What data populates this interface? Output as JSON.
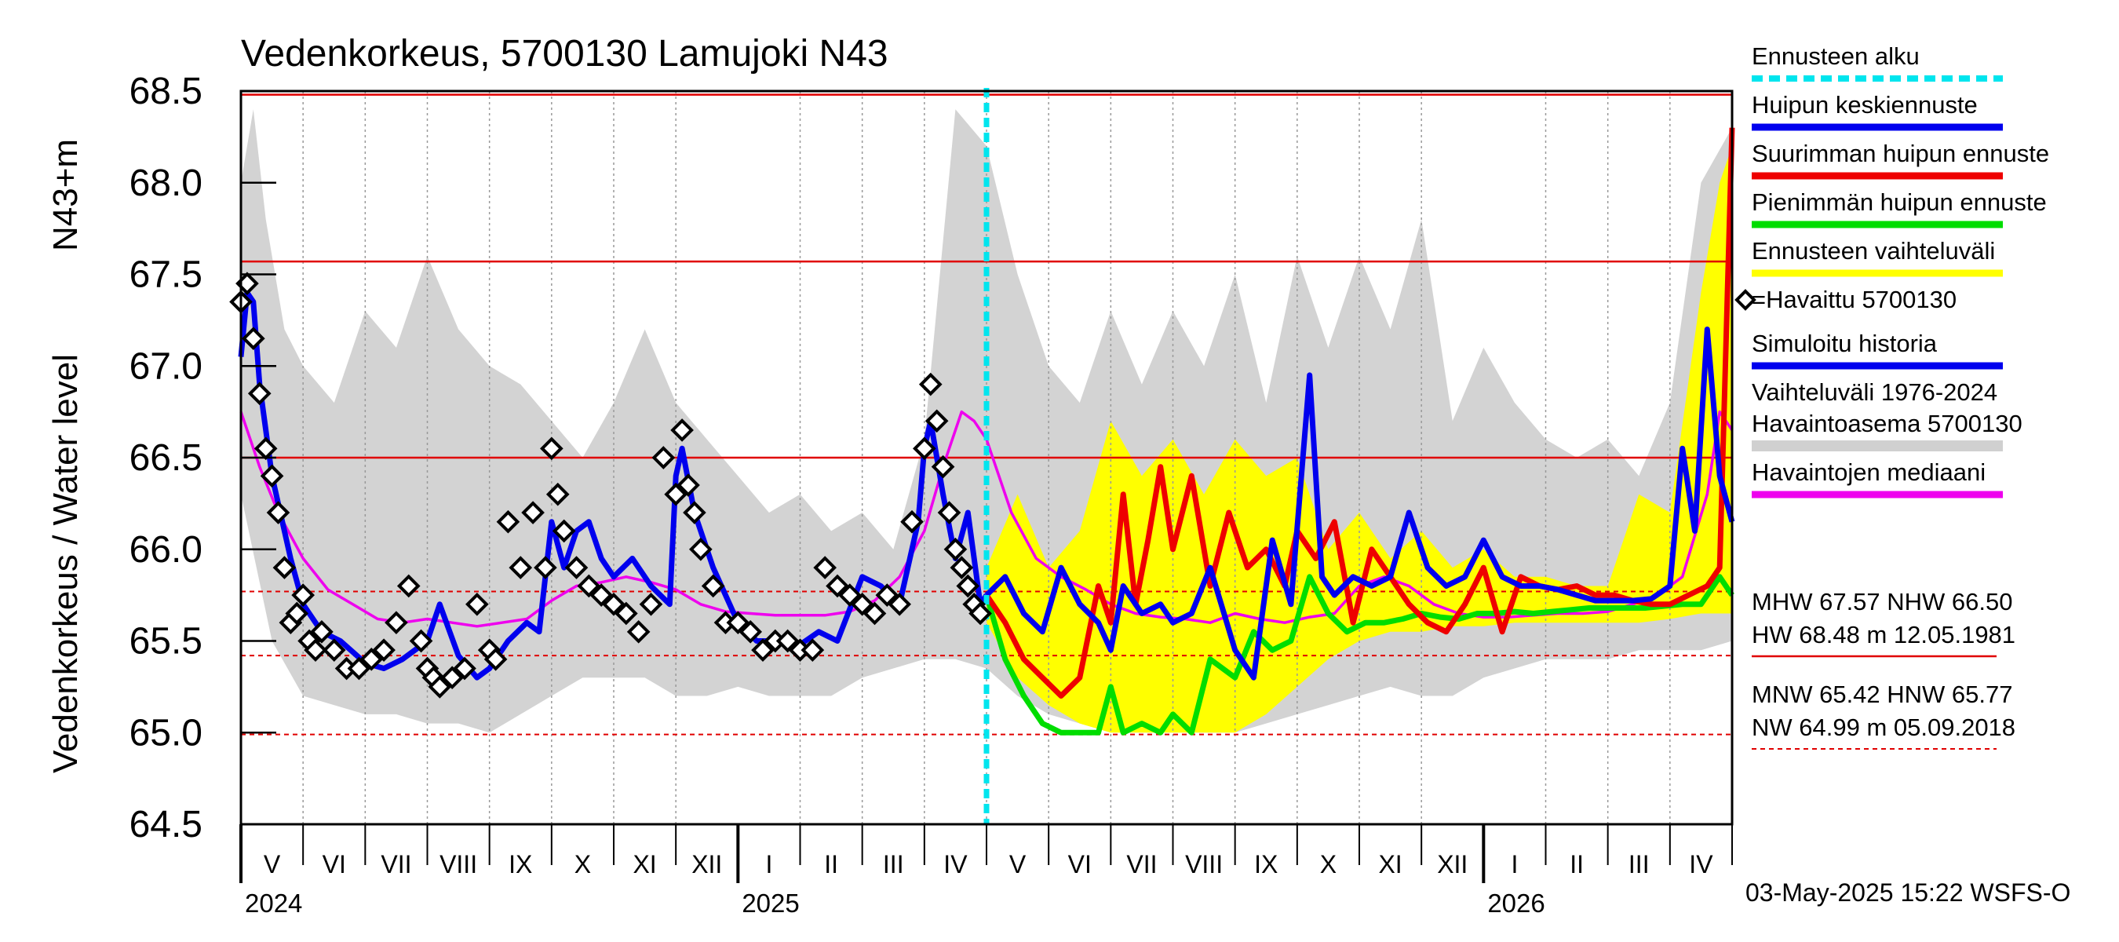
{
  "chart_data": {
    "type": "line",
    "title": "Vedenkorkeus, 5700130 Lamujoki N43",
    "ylabel_left": "Vedenkorkeus / Water level",
    "ylabel_right": "N43+m",
    "ylim": [
      64.5,
      68.5
    ],
    "yticks": [
      68.5,
      68.0,
      67.5,
      67.0,
      66.5,
      66.0,
      65.5,
      65.0,
      64.5
    ],
    "ytick_labels": [
      "68.5",
      "68.0",
      "67.5",
      "67.0",
      "66.5",
      "66.0",
      "65.5",
      "65.0",
      "64.5"
    ],
    "x_month_start": 0,
    "x_month_end": 24,
    "months": [
      "V",
      "VI",
      "VII",
      "VIII",
      "IX",
      "X",
      "XI",
      "XII",
      "I",
      "II",
      "III",
      "IV",
      "V",
      "VI",
      "VII",
      "VIII",
      "IX",
      "X",
      "XI",
      "XII",
      "I",
      "II",
      "III",
      "IV"
    ],
    "years": [
      {
        "label": "2024",
        "month_index": 0
      },
      {
        "label": "2025",
        "month_index": 8
      },
      {
        "label": "2026",
        "month_index": 20
      }
    ],
    "forecast_start": 12.0,
    "reference_lines": [
      {
        "name": "HW",
        "value": 68.48,
        "style": "solid"
      },
      {
        "name": "MHW",
        "value": 67.57,
        "style": "solid"
      },
      {
        "name": "NHW",
        "value": 66.5,
        "style": "solid"
      },
      {
        "name": "HNW",
        "value": 65.77,
        "style": "dashed"
      },
      {
        "name": "MNW",
        "value": 65.42,
        "style": "dashed"
      },
      {
        "name": "NW",
        "value": 64.99,
        "style": "dashed"
      }
    ],
    "legend": [
      {
        "label": "Ennusteen alku",
        "color": "#00e5ee",
        "kind": "dashed"
      },
      {
        "label": "Huipun keskiennuste",
        "color": "#0000ee",
        "kind": "line"
      },
      {
        "label": "Suurimman huipun ennuste",
        "color": "#ee0000",
        "kind": "line"
      },
      {
        "label": "Pienimmän huipun ennuste",
        "color": "#00dd00",
        "kind": "line"
      },
      {
        "label": "Ennusteen vaihteluväli",
        "color": "#ffff00",
        "kind": "line"
      },
      {
        "label": "=Havaittu 5700130",
        "color": "#000000",
        "kind": "marker"
      },
      {
        "label": "Simuloitu historia",
        "color": "#0000ee",
        "kind": "line"
      },
      {
        "label": "Vaihteluväli 1976-2024",
        "color": "#d0d0d0",
        "kind": "text"
      },
      {
        "label": " Havaintoasema 5700130",
        "color": "#d0d0d0",
        "kind": "line"
      },
      {
        "label": "Havaintojen mediaani",
        "color": "#ee00ee",
        "kind": "line"
      }
    ],
    "stats_lines": [
      "MHW  67.57 NHW  66.50",
      "HW  68.48 m 12.05.1981",
      "MNW  65.42 HNW  65.77",
      "NW  64.99 m 05.09.2018"
    ],
    "footer": "03-May-2025 15:22 WSFS-O",
    "series": [
      {
        "name": "Havaintojen mediaani",
        "color": "#ee00ee",
        "x": [
          0,
          0.3,
          0.6,
          1,
          1.4,
          1.8,
          2.2,
          2.6,
          3,
          3.4,
          3.8,
          4.2,
          4.6,
          5,
          5.4,
          5.8,
          6.2,
          6.6,
          7,
          7.4,
          7.8,
          8.2,
          8.6,
          9,
          9.4,
          9.8,
          10.2,
          10.6,
          11,
          11.3,
          11.6,
          11.8,
          12,
          12.4,
          12.8,
          13.2,
          13.6,
          14,
          14.4,
          14.8,
          15.2,
          15.6,
          16,
          16.4,
          16.8,
          17.2,
          17.6,
          18,
          18.4,
          18.8,
          19.2,
          19.6,
          20,
          20.4,
          20.8,
          21.2,
          21.6,
          22,
          22.4,
          22.8,
          23.2,
          23.6,
          23.8,
          24
        ],
        "y": [
          66.75,
          66.45,
          66.2,
          65.95,
          65.78,
          65.7,
          65.62,
          65.6,
          65.62,
          65.6,
          65.58,
          65.6,
          65.62,
          65.72,
          65.8,
          65.82,
          65.85,
          65.82,
          65.78,
          65.7,
          65.66,
          65.65,
          65.64,
          65.64,
          65.64,
          65.66,
          65.72,
          65.85,
          66.1,
          66.45,
          66.75,
          66.7,
          66.6,
          66.2,
          65.95,
          65.85,
          65.78,
          65.7,
          65.65,
          65.63,
          65.62,
          65.6,
          65.65,
          65.62,
          65.6,
          65.63,
          65.65,
          65.8,
          65.85,
          65.8,
          65.7,
          65.65,
          65.63,
          65.63,
          65.64,
          65.65,
          65.65,
          65.66,
          65.7,
          65.75,
          65.85,
          66.3,
          66.75,
          66.65
        ]
      },
      {
        "name": "Simuloitu historia",
        "color": "#0000ee",
        "x": [
          0,
          0.1,
          0.2,
          0.3,
          0.5,
          0.8,
          1,
          1.3,
          1.6,
          2,
          2.3,
          2.6,
          3,
          3.2,
          3.5,
          3.8,
          4,
          4.3,
          4.6,
          4.8,
          5,
          5.2,
          5.4,
          5.6,
          5.8,
          6,
          6.3,
          6.6,
          6.9,
          7,
          7.1,
          7.3,
          7.6,
          8,
          8.3,
          8.6,
          9,
          9.3,
          9.6,
          10,
          10.3,
          10.6,
          10.9,
          11,
          11.1,
          11.3,
          11.5,
          11.7,
          11.9,
          12
        ],
        "y": [
          67.05,
          67.4,
          67.35,
          66.9,
          66.4,
          65.95,
          65.7,
          65.55,
          65.5,
          65.38,
          65.35,
          65.4,
          65.5,
          65.7,
          65.42,
          65.3,
          65.35,
          65.5,
          65.6,
          65.55,
          66.15,
          65.9,
          66.1,
          66.15,
          65.95,
          65.85,
          65.95,
          65.8,
          65.7,
          66.4,
          66.55,
          66.2,
          65.9,
          65.6,
          65.5,
          65.5,
          65.48,
          65.55,
          65.5,
          65.85,
          65.8,
          65.7,
          66.15,
          66.55,
          66.7,
          66.3,
          65.95,
          66.2,
          65.7,
          65.75
        ]
      },
      {
        "name": "Huipun keskiennuste",
        "color": "#0000ee",
        "x": [
          12,
          12.3,
          12.6,
          12.9,
          13.2,
          13.5,
          13.8,
          14,
          14.2,
          14.5,
          14.8,
          15,
          15.3,
          15.6,
          16,
          16.3,
          16.6,
          16.9,
          17.2,
          17.4,
          17.6,
          17.9,
          18.2,
          18.5,
          18.8,
          19.1,
          19.4,
          19.7,
          20,
          20.3,
          20.6,
          20.9,
          21.2,
          21.5,
          21.8,
          22.1,
          22.4,
          22.7,
          23,
          23.2,
          23.4,
          23.6,
          23.8,
          24
        ],
        "y": [
          65.75,
          65.85,
          65.65,
          65.55,
          65.9,
          65.7,
          65.6,
          65.45,
          65.8,
          65.65,
          65.7,
          65.6,
          65.65,
          65.9,
          65.45,
          65.3,
          66.05,
          65.7,
          66.95,
          65.85,
          65.75,
          65.85,
          65.8,
          65.85,
          66.2,
          65.9,
          65.8,
          65.85,
          66.05,
          65.85,
          65.8,
          65.8,
          65.78,
          65.75,
          65.72,
          65.72,
          65.72,
          65.73,
          65.8,
          66.55,
          66.1,
          67.2,
          66.4,
          66.15
        ]
      },
      {
        "name": "Suurimman huipun ennuste",
        "color": "#ee0000",
        "x": [
          12,
          12.3,
          12.6,
          12.9,
          13.2,
          13.5,
          13.8,
          14,
          14.2,
          14.4,
          14.6,
          14.8,
          15,
          15.3,
          15.6,
          15.9,
          16.2,
          16.5,
          16.8,
          17,
          17.3,
          17.6,
          17.9,
          18.2,
          18.5,
          18.8,
          19.1,
          19.4,
          19.7,
          20,
          20.3,
          20.6,
          20.9,
          21.2,
          21.5,
          21.8,
          22.1,
          22.4,
          22.7,
          23,
          23.3,
          23.6,
          23.8,
          24
        ],
        "y": [
          65.75,
          65.6,
          65.4,
          65.3,
          65.2,
          65.3,
          65.8,
          65.6,
          66.3,
          65.7,
          66.05,
          66.45,
          66.0,
          66.4,
          65.8,
          66.2,
          65.9,
          66.0,
          65.8,
          66.1,
          65.95,
          66.15,
          65.6,
          66.0,
          65.85,
          65.7,
          65.6,
          65.55,
          65.7,
          65.9,
          65.55,
          65.85,
          65.8,
          65.78,
          65.8,
          65.75,
          65.75,
          65.72,
          65.7,
          65.7,
          65.75,
          65.8,
          65.9,
          68.3
        ]
      },
      {
        "name": "Pienimmän huipun ennuste",
        "color": "#00dd00",
        "x": [
          12,
          12.3,
          12.6,
          12.9,
          13.2,
          13.5,
          13.8,
          14,
          14.2,
          14.5,
          14.8,
          15,
          15.3,
          15.6,
          16,
          16.3,
          16.6,
          16.9,
          17.2,
          17.5,
          17.8,
          18.1,
          18.4,
          18.7,
          19,
          19.3,
          19.6,
          19.9,
          20.2,
          20.5,
          20.8,
          21.1,
          21.4,
          21.7,
          22,
          22.3,
          22.6,
          22.9,
          23.2,
          23.5,
          23.8,
          24
        ],
        "y": [
          65.75,
          65.4,
          65.2,
          65.05,
          65.0,
          65.0,
          65.0,
          65.25,
          65.0,
          65.05,
          65.0,
          65.1,
          65.0,
          65.4,
          65.3,
          65.55,
          65.45,
          65.5,
          65.85,
          65.65,
          65.55,
          65.6,
          65.6,
          65.62,
          65.65,
          65.63,
          65.62,
          65.65,
          65.65,
          65.66,
          65.65,
          65.66,
          65.67,
          65.68,
          65.68,
          65.68,
          65.68,
          65.69,
          65.7,
          65.7,
          65.85,
          65.75
        ]
      },
      {
        "name": "Ennusteen vaihteluväli ylä",
        "color": "#ffff00",
        "x": [
          12,
          12.5,
          13,
          13.5,
          14,
          14.5,
          15,
          15.5,
          16,
          16.5,
          17,
          17.5,
          18,
          18.5,
          19,
          19.5,
          20,
          20.5,
          21,
          21.5,
          22,
          22.5,
          23,
          23.5,
          23.8,
          24
        ],
        "y": [
          65.9,
          66.3,
          65.9,
          66.1,
          66.7,
          66.4,
          66.6,
          66.3,
          66.6,
          66.4,
          66.5,
          66.0,
          66.2,
          65.95,
          66.1,
          65.9,
          66.0,
          65.85,
          65.85,
          65.8,
          65.8,
          66.3,
          66.2,
          67.4,
          68.0,
          68.2
        ]
      },
      {
        "name": "Ennusteen vaihteluväli ala",
        "color": "#ffff00",
        "x": [
          12,
          12.5,
          13,
          13.5,
          14,
          14.5,
          15,
          15.5,
          16,
          16.5,
          17,
          17.5,
          18,
          18.5,
          19,
          19.5,
          20,
          20.5,
          21,
          21.5,
          22,
          22.5,
          23,
          23.5,
          24
        ],
        "y": [
          65.6,
          65.3,
          65.15,
          65.05,
          65.0,
          65.0,
          65.0,
          65.0,
          65.0,
          65.1,
          65.25,
          65.4,
          65.5,
          65.55,
          65.55,
          65.58,
          65.58,
          65.6,
          65.6,
          65.6,
          65.6,
          65.6,
          65.62,
          65.65,
          65.65
        ]
      },
      {
        "name": "Vaihteluväli ylä",
        "color": "#d0d0d0",
        "x": [
          0,
          0.2,
          0.4,
          0.7,
          1,
          1.5,
          2,
          2.5,
          3,
          3.5,
          4,
          4.5,
          5,
          5.5,
          6,
          6.5,
          7,
          7.5,
          8,
          8.5,
          9,
          9.5,
          10,
          10.5,
          11,
          11.5,
          12,
          12.5,
          13,
          13.5,
          14,
          14.5,
          15,
          15.5,
          16,
          16.5,
          17,
          17.5,
          18,
          18.5,
          19,
          19.5,
          20,
          20.5,
          21,
          21.5,
          22,
          22.5,
          23,
          23.5,
          24
        ],
        "y": [
          68.0,
          68.4,
          67.8,
          67.2,
          67.0,
          66.8,
          67.3,
          67.1,
          67.6,
          67.2,
          67.0,
          66.9,
          66.7,
          66.5,
          66.8,
          67.2,
          66.8,
          66.6,
          66.4,
          66.2,
          66.3,
          66.1,
          66.2,
          66.0,
          66.6,
          68.4,
          68.2,
          67.5,
          67.0,
          66.8,
          67.3,
          66.9,
          67.3,
          67.0,
          67.5,
          66.8,
          67.6,
          67.1,
          67.6,
          67.2,
          67.8,
          66.7,
          67.1,
          66.8,
          66.6,
          66.5,
          66.6,
          66.4,
          66.8,
          68.0,
          68.3
        ]
      },
      {
        "name": "Vaihteluväli ala",
        "color": "#d0d0d0",
        "x": [
          0,
          0.5,
          1,
          1.5,
          2,
          2.5,
          3,
          3.5,
          4,
          4.5,
          5,
          5.5,
          6,
          6.5,
          7,
          7.5,
          8,
          8.5,
          9,
          9.5,
          10,
          10.5,
          11,
          11.5,
          12,
          12.5,
          13,
          13.5,
          14,
          14.5,
          15,
          15.5,
          16,
          16.5,
          17,
          17.5,
          18,
          18.5,
          19,
          19.5,
          20,
          20.5,
          21,
          21.5,
          22,
          22.5,
          23,
          23.5,
          24
        ],
        "y": [
          66.3,
          65.5,
          65.2,
          65.15,
          65.1,
          65.1,
          65.05,
          65.05,
          65.0,
          65.1,
          65.2,
          65.3,
          65.3,
          65.3,
          65.2,
          65.2,
          65.25,
          65.2,
          65.2,
          65.2,
          65.3,
          65.35,
          65.4,
          65.4,
          65.35,
          65.2,
          65.1,
          65.05,
          65.0,
          65.0,
          65.0,
          65.0,
          65.0,
          65.05,
          65.1,
          65.15,
          65.2,
          65.25,
          65.2,
          65.2,
          65.3,
          65.35,
          65.4,
          65.4,
          65.4,
          65.45,
          65.45,
          65.45,
          65.5
        ]
      },
      {
        "name": "Havaittu 5700130",
        "color": "#000000",
        "kind": "markers",
        "x": [
          0,
          0.1,
          0.2,
          0.3,
          0.4,
          0.5,
          0.6,
          0.7,
          0.8,
          0.9,
          1,
          1.1,
          1.2,
          1.3,
          1.5,
          1.7,
          1.9,
          2.1,
          2.3,
          2.5,
          2.7,
          2.9,
          3,
          3.1,
          3.2,
          3.4,
          3.6,
          3.8,
          4,
          4.1,
          4.3,
          4.5,
          4.7,
          4.9,
          5,
          5.1,
          5.2,
          5.4,
          5.6,
          5.8,
          6,
          6.2,
          6.4,
          6.6,
          6.8,
          7,
          7.1,
          7.2,
          7.3,
          7.4,
          7.6,
          7.8,
          8,
          8.2,
          8.4,
          8.6,
          8.8,
          9,
          9.2,
          9.4,
          9.6,
          9.8,
          10,
          10.2,
          10.4,
          10.6,
          10.8,
          11,
          11.1,
          11.2,
          11.3,
          11.4,
          11.5,
          11.6,
          11.7,
          11.8,
          11.9
        ],
        "y": [
          67.35,
          67.45,
          67.15,
          66.85,
          66.55,
          66.4,
          66.2,
          65.9,
          65.6,
          65.65,
          65.75,
          65.5,
          65.45,
          65.55,
          65.45,
          65.35,
          65.35,
          65.4,
          65.45,
          65.6,
          65.8,
          65.5,
          65.35,
          65.3,
          65.25,
          65.3,
          65.35,
          65.7,
          65.45,
          65.4,
          66.15,
          65.9,
          66.2,
          65.9,
          66.55,
          66.3,
          66.1,
          65.9,
          65.8,
          65.75,
          65.7,
          65.65,
          65.55,
          65.7,
          66.5,
          66.3,
          66.65,
          66.35,
          66.2,
          66.0,
          65.8,
          65.6,
          65.6,
          65.55,
          65.45,
          65.5,
          65.5,
          65.45,
          65.45,
          65.9,
          65.8,
          65.75,
          65.7,
          65.65,
          65.75,
          65.7,
          66.15,
          66.55,
          66.9,
          66.7,
          66.45,
          66.2,
          66.0,
          65.9,
          65.8,
          65.7,
          65.65
        ]
      }
    ]
  }
}
